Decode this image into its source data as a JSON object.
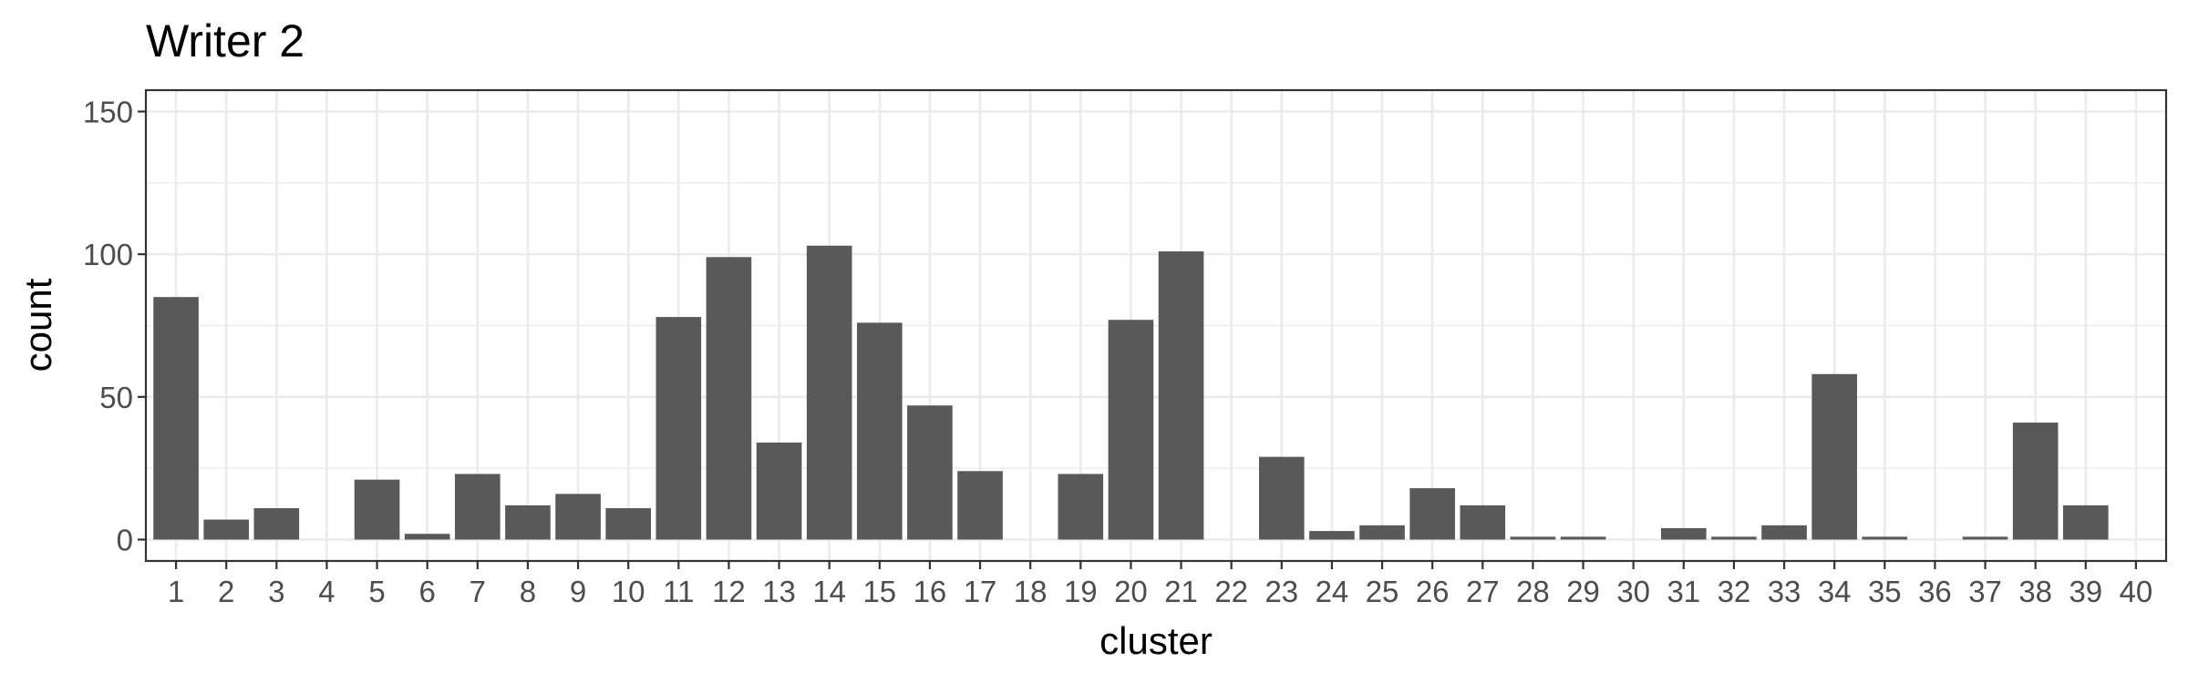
{
  "chart_data": {
    "type": "bar",
    "title": "Writer 2",
    "xlabel": "cluster",
    "ylabel": "count",
    "ylim": [
      -7.5,
      157.5
    ],
    "yticks": [
      0,
      50,
      100,
      150
    ],
    "grid": true,
    "categories": [
      "1",
      "2",
      "3",
      "4",
      "5",
      "6",
      "7",
      "8",
      "9",
      "10",
      "11",
      "12",
      "13",
      "14",
      "15",
      "16",
      "17",
      "18",
      "19",
      "20",
      "21",
      "22",
      "23",
      "24",
      "25",
      "26",
      "27",
      "28",
      "29",
      "30",
      "31",
      "32",
      "33",
      "34",
      "35",
      "36",
      "37",
      "38",
      "39",
      "40"
    ],
    "values": [
      85,
      7,
      11,
      0,
      21,
      2,
      23,
      12,
      16,
      11,
      78,
      99,
      34,
      103,
      76,
      47,
      24,
      0,
      23,
      77,
      101,
      0,
      29,
      3,
      5,
      18,
      12,
      1,
      1,
      0,
      4,
      1,
      5,
      58,
      1,
      0,
      1,
      41,
      12,
      0
    ]
  }
}
